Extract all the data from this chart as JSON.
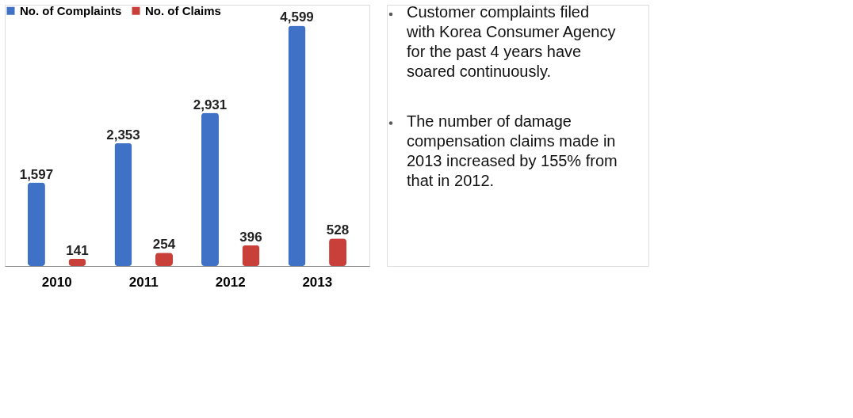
{
  "chart_data": {
    "type": "bar",
    "categories": [
      "2010",
      "2011",
      "2012",
      "2013"
    ],
    "series": [
      {
        "name": "No. of Complaints",
        "color": "#3f72c6",
        "values": [
          1597,
          2353,
          2931,
          4599
        ],
        "value_labels": [
          "1,597",
          "2,353",
          "2,931",
          "4,599"
        ]
      },
      {
        "name": "No. of Claims",
        "color": "#c9403a",
        "values": [
          141,
          254,
          396,
          528
        ],
        "value_labels": [
          "141",
          "254",
          "396",
          "528"
        ]
      }
    ],
    "legend": "top left",
    "grid": false,
    "annotations": [
      "Customer complaints filed with Korea Consumer Agency for the past 4 years have soared continuously.",
      "The number of damage compensation claims made in 2013 increased by 155% from that in 2012."
    ]
  }
}
